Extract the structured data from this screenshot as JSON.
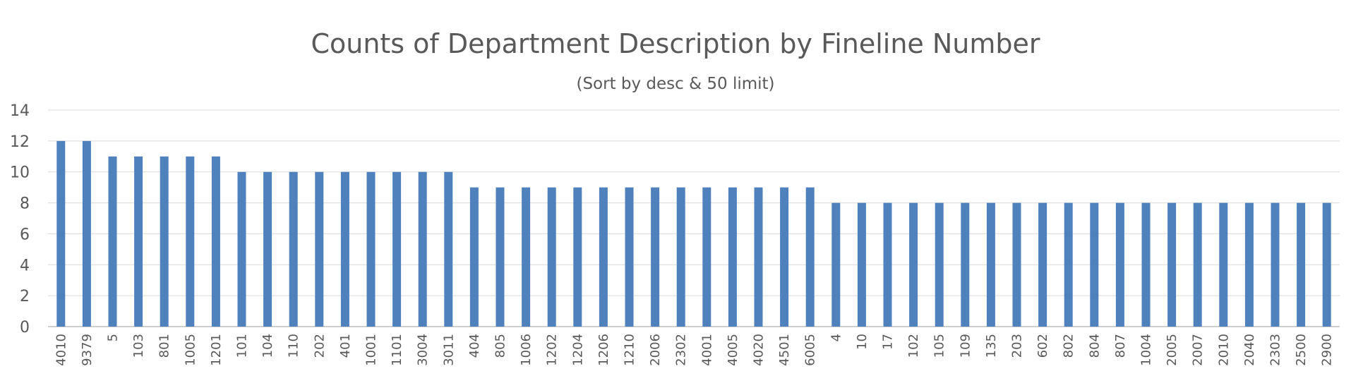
{
  "chart_data": {
    "type": "bar",
    "title": "Counts of Department Description by Fineline Number",
    "subtitle": "(Sort by desc & 50 limit)",
    "xlabel": "",
    "ylabel": "",
    "ylim": [
      0,
      14
    ],
    "yticks": [
      0,
      2,
      4,
      6,
      8,
      10,
      12,
      14
    ],
    "grid": true,
    "legend": "none",
    "bar_color": "#4f81bd",
    "categories": [
      "4010",
      "9379",
      "5",
      "103",
      "801",
      "1005",
      "1201",
      "101",
      "104",
      "110",
      "202",
      "401",
      "1001",
      "1101",
      "3004",
      "3011",
      "404",
      "805",
      "1006",
      "1202",
      "1204",
      "1206",
      "1210",
      "2006",
      "2302",
      "4001",
      "4005",
      "4020",
      "4501",
      "6005",
      "4",
      "10",
      "17",
      "102",
      "105",
      "109",
      "135",
      "203",
      "602",
      "802",
      "804",
      "807",
      "1004",
      "2005",
      "2007",
      "2010",
      "2040",
      "2303",
      "2500",
      "2900"
    ],
    "values": [
      12,
      12,
      11,
      11,
      11,
      11,
      11,
      10,
      10,
      10,
      10,
      10,
      10,
      10,
      10,
      10,
      9,
      9,
      9,
      9,
      9,
      9,
      9,
      9,
      9,
      9,
      9,
      9,
      9,
      9,
      8,
      8,
      8,
      8,
      8,
      8,
      8,
      8,
      8,
      8,
      8,
      8,
      8,
      8,
      8,
      8,
      8,
      8,
      8,
      8
    ]
  }
}
